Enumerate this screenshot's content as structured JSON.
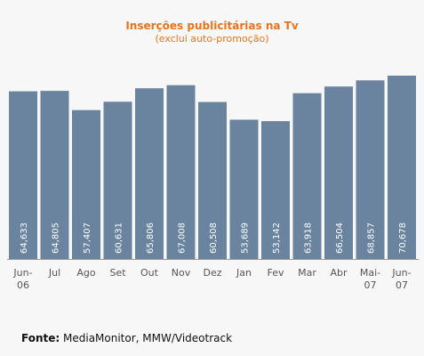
{
  "chart_data": {
    "type": "bar",
    "title": "Inserções publicitárias na Tv",
    "subtitle": "(exclui auto-promoção)",
    "categories": [
      [
        "Jun-",
        "06"
      ],
      [
        "Jul"
      ],
      [
        "Ago"
      ],
      [
        "Set"
      ],
      [
        "Out"
      ],
      [
        "Nov"
      ],
      [
        "Dez"
      ],
      [
        "Jan"
      ],
      [
        "Fev"
      ],
      [
        "Mar"
      ],
      [
        "Abr"
      ],
      [
        "Mai-",
        "07"
      ],
      [
        "Jun-",
        "07"
      ]
    ],
    "values": [
      64633,
      64805,
      57407,
      60631,
      65806,
      67008,
      60508,
      53689,
      53142,
      63918,
      66504,
      68857,
      70678
    ],
    "value_labels": [
      "64,633",
      "64,805",
      "57,407",
      "60,631",
      "65,806",
      "67,008",
      "60,508",
      "53,689",
      "53,142",
      "63,918",
      "66,504",
      "68,857",
      "70,678"
    ],
    "ylim": [
      0,
      70678
    ],
    "xlabel": "",
    "ylabel": "",
    "bar_color": "#6a84a0",
    "title_color": "#e8731a",
    "grid": false
  },
  "source": {
    "label": "Fonte:",
    "text": "MediaMonitor, MMW/Videotrack"
  }
}
